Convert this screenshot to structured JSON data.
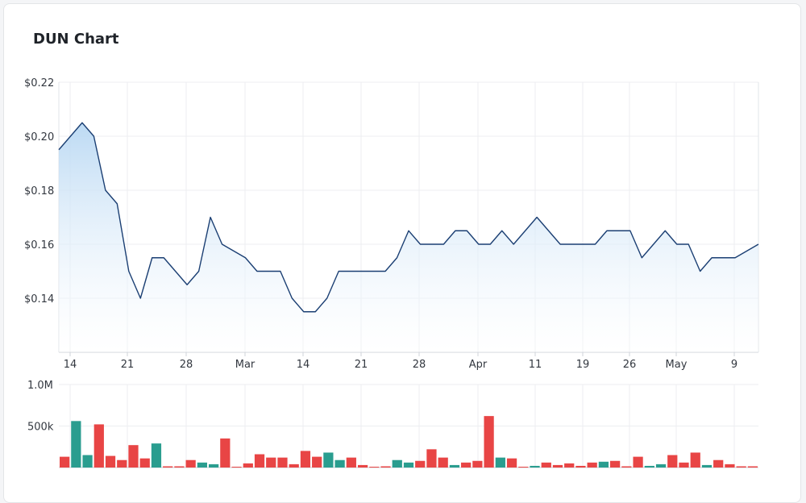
{
  "card": {
    "title": "DUN Chart"
  },
  "chart_data": [
    {
      "type": "area",
      "title": "DUN Chart",
      "ylabel": "",
      "xlabel": "",
      "ylim": [
        0.12,
        0.22
      ],
      "y_ticks": [
        {
          "value": 0.14,
          "label": "$0.14"
        },
        {
          "value": 0.16,
          "label": "$0.16"
        },
        {
          "value": 0.18,
          "label": "$0.18"
        },
        {
          "value": 0.2,
          "label": "$0.20"
        },
        {
          "value": 0.22,
          "label": "$0.22"
        }
      ],
      "x_ticks": [
        "14",
        "21",
        "28",
        "Mar",
        "14",
        "21",
        "28",
        "Apr",
        "11",
        "19",
        "26",
        "May",
        "9"
      ],
      "grid": true,
      "series": [
        {
          "values": [
            0.195,
            0.2,
            0.205,
            0.2,
            0.18,
            0.175,
            0.15,
            0.14,
            0.155,
            0.155,
            0.15,
            0.145,
            0.15,
            0.17,
            0.16,
            0.1575,
            0.155,
            0.15,
            0.15,
            0.15,
            0.14,
            0.135,
            0.135,
            0.14,
            0.15,
            0.15,
            0.15,
            0.15,
            0.15,
            0.155,
            0.165,
            0.16,
            0.16,
            0.16,
            0.165,
            0.165,
            0.16,
            0.16,
            0.165,
            0.16,
            0.165,
            0.17,
            0.165,
            0.16,
            0.16,
            0.16,
            0.16,
            0.165,
            0.165,
            0.165,
            0.155,
            0.16,
            0.165,
            0.16,
            0.16,
            0.15,
            0.155,
            0.155,
            0.155,
            0.1575,
            0.16
          ]
        }
      ],
      "colors": {
        "line": "#1b3f73",
        "fill_top": "#b9d8f3",
        "fill_bottom": "#ffffff"
      }
    },
    {
      "type": "bar",
      "title": "",
      "ylim": [
        0,
        1000000
      ],
      "y_ticks": [
        {
          "value": 500000,
          "label": "500k"
        },
        {
          "value": 1000000,
          "label": "1.0M"
        }
      ],
      "values": [
        130000,
        560000,
        150000,
        520000,
        140000,
        90000,
        270000,
        110000,
        290000,
        10000,
        10000,
        90000,
        60000,
        40000,
        350000,
        0,
        50000,
        160000,
        120000,
        120000,
        40000,
        200000,
        130000,
        180000,
        90000,
        120000,
        30000,
        0,
        10000,
        90000,
        60000,
        80000,
        220000,
        120000,
        30000,
        60000,
        80000,
        620000,
        120000,
        110000,
        0,
        20000,
        60000,
        30000,
        50000,
        20000,
        60000,
        70000,
        80000,
        10000,
        130000,
        20000,
        40000,
        150000,
        60000,
        180000,
        30000,
        90000,
        40000,
        10000,
        10000
      ],
      "direction": [
        "dn",
        "up",
        "up",
        "dn",
        "dn",
        "dn",
        "dn",
        "dn",
        "up",
        "dn",
        "dn",
        "dn",
        "up",
        "up",
        "dn",
        "dn",
        "dn",
        "dn",
        "dn",
        "dn",
        "dn",
        "dn",
        "dn",
        "up",
        "up",
        "dn",
        "dn",
        "dn",
        "dn",
        "up",
        "up",
        "dn",
        "dn",
        "dn",
        "up",
        "dn",
        "dn",
        "dn",
        "up",
        "dn",
        "dn",
        "up",
        "dn",
        "dn",
        "dn",
        "dn",
        "dn",
        "up",
        "dn",
        "dn",
        "dn",
        "up",
        "up",
        "dn",
        "dn",
        "dn",
        "up",
        "dn",
        "dn",
        "dn",
        "dn"
      ],
      "colors": {
        "up": "#2a9d8f",
        "down": "#e84545",
        "flat": "#1b3a6b"
      }
    }
  ]
}
